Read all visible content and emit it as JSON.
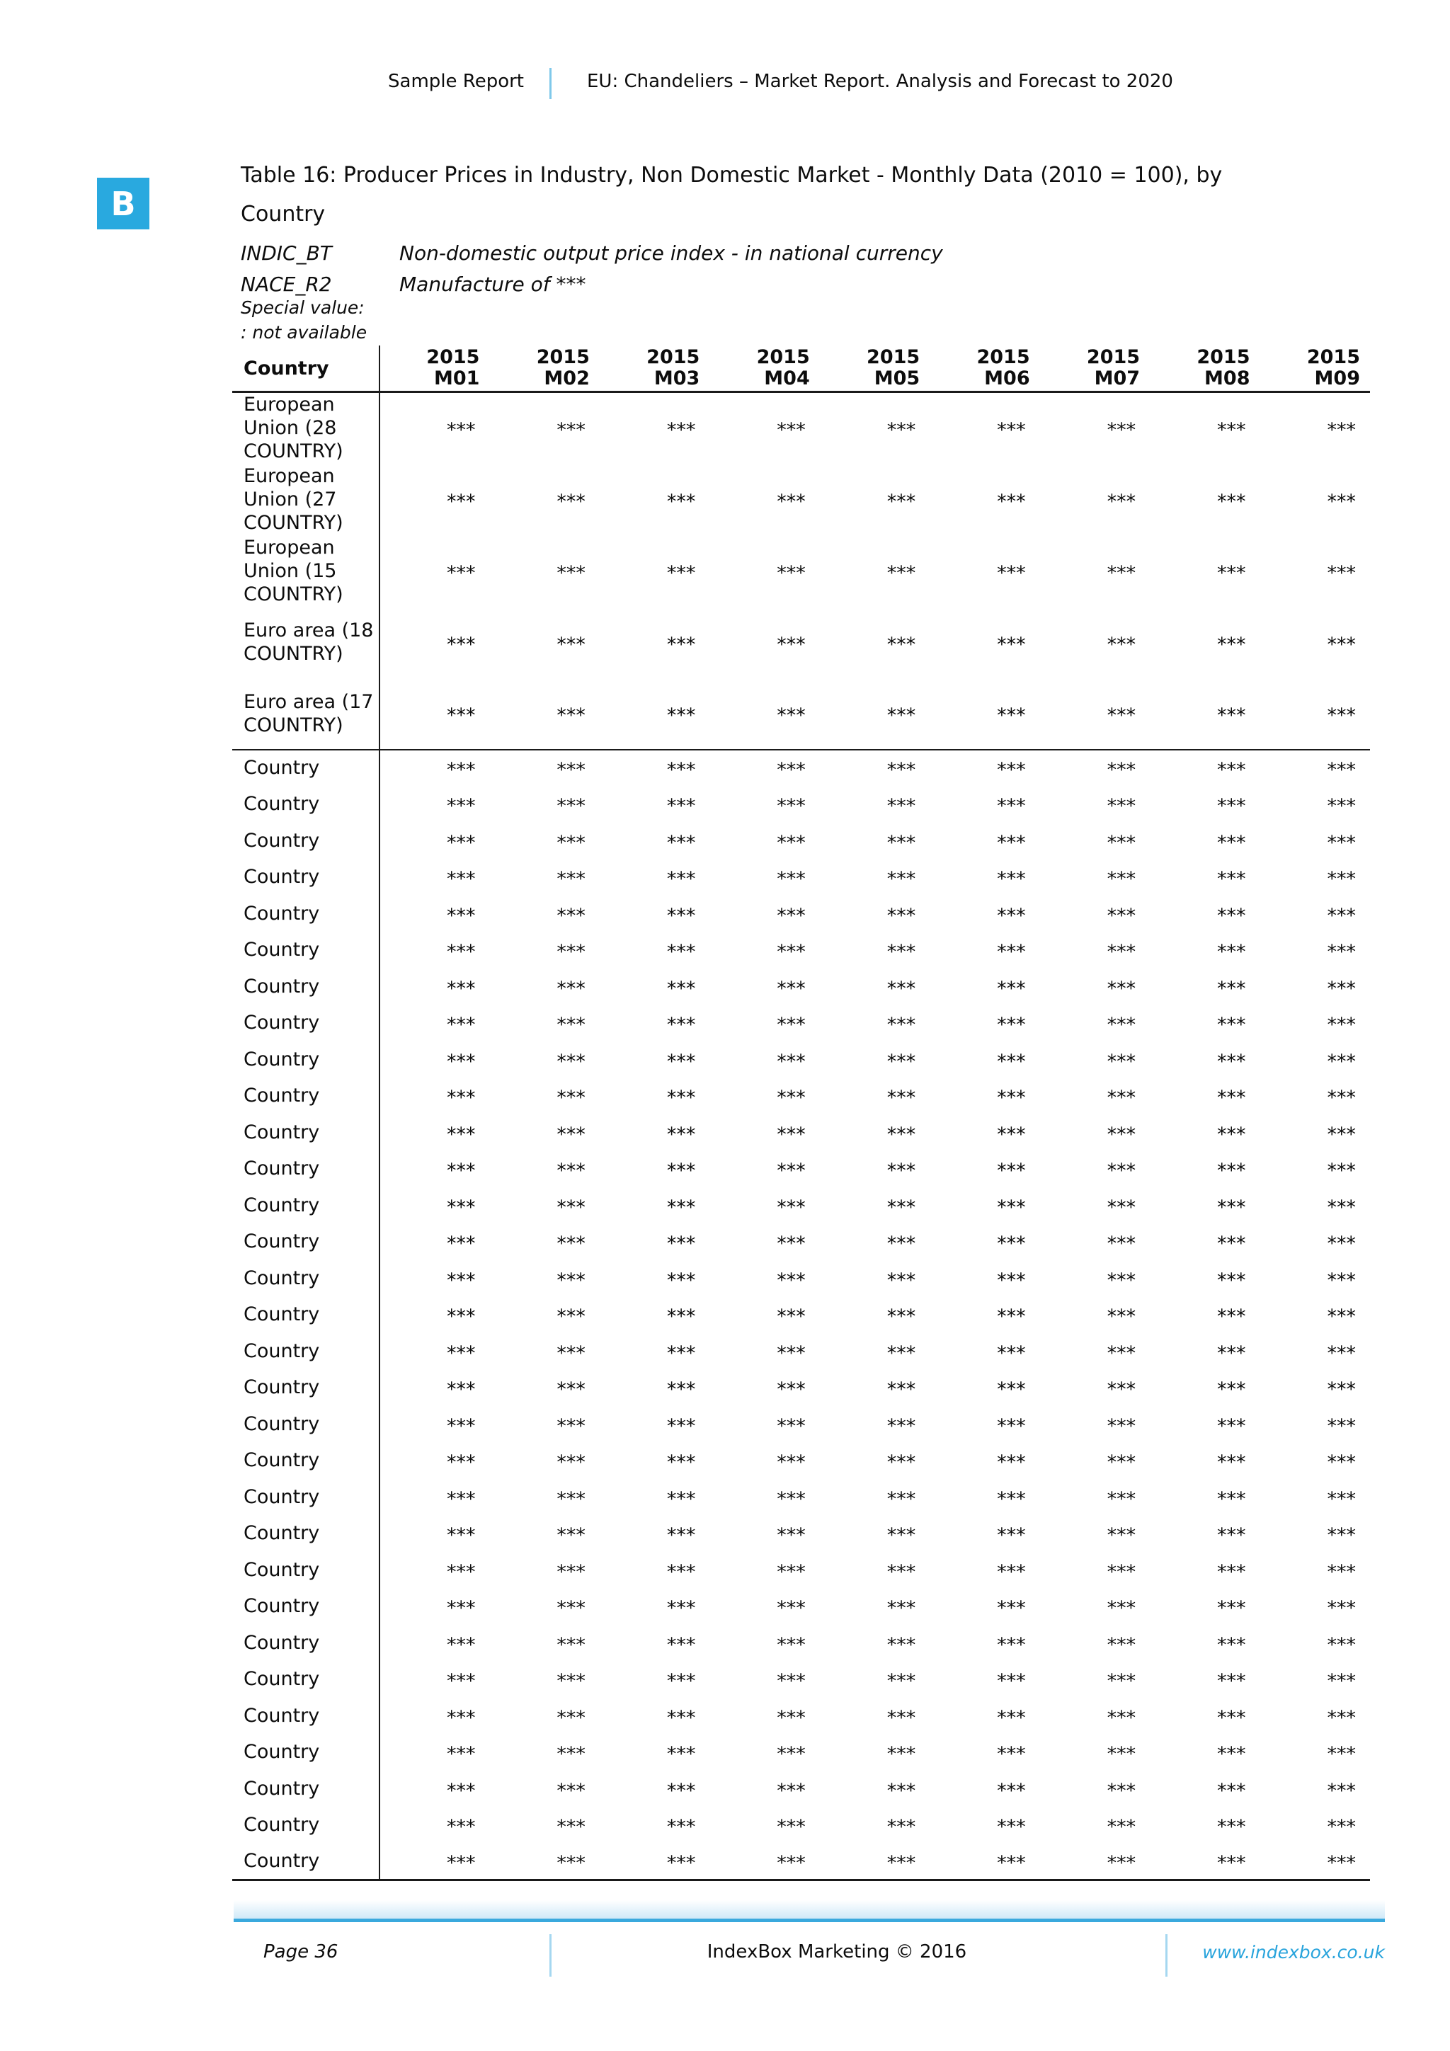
{
  "colors": {
    "accent_blue": "#29a9df",
    "footer_rule_blue": "#3aa9dd",
    "divider_light_blue": "#a5d7f0",
    "link_blue": "#29a4dc"
  },
  "header": {
    "left": "Sample Report",
    "right": "EU: Chandeliers – Market Report. Analysis and Forecast to 2020"
  },
  "logo": {
    "letter": "B"
  },
  "title": "Table 16: Producer Prices in Industry, Non Domestic Market - Monthly Data (2010 = 100), by Country",
  "meta": [
    {
      "label": "INDIC_BT",
      "value": "Non-domestic output price index - in national currency"
    },
    {
      "label": "NACE_R2",
      "value": "Manufacture of ***"
    }
  ],
  "special_value_label": "Special value:",
  "special_value_note": ": not available",
  "table": {
    "country_header": "Country",
    "columns": [
      {
        "year": "2015",
        "month": "M01"
      },
      {
        "year": "2015",
        "month": "M02"
      },
      {
        "year": "2015",
        "month": "M03"
      },
      {
        "year": "2015",
        "month": "M04"
      },
      {
        "year": "2015",
        "month": "M05"
      },
      {
        "year": "2015",
        "month": "M06"
      },
      {
        "year": "2015",
        "month": "M07"
      },
      {
        "year": "2015",
        "month": "M08"
      },
      {
        "year": "2015",
        "month": "M09"
      }
    ],
    "region_rows": [
      {
        "name": "European Union (28 COUNTRY)",
        "values": [
          "***",
          "***",
          "***",
          "***",
          "***",
          "***",
          "***",
          "***",
          "***"
        ]
      },
      {
        "name": "European Union (27 COUNTRY)",
        "values": [
          "***",
          "***",
          "***",
          "***",
          "***",
          "***",
          "***",
          "***",
          "***"
        ]
      },
      {
        "name": "European Union (15 COUNTRY)",
        "values": [
          "***",
          "***",
          "***",
          "***",
          "***",
          "***",
          "***",
          "***",
          "***"
        ]
      },
      {
        "name": "Euro area (18 COUNTRY)",
        "values": [
          "***",
          "***",
          "***",
          "***",
          "***",
          "***",
          "***",
          "***",
          "***"
        ]
      },
      {
        "name": "Euro area (17 COUNTRY)",
        "values": [
          "***",
          "***",
          "***",
          "***",
          "***",
          "***",
          "***",
          "***",
          "***"
        ]
      }
    ],
    "country_rows": [
      {
        "name": "Country",
        "values": [
          "***",
          "***",
          "***",
          "***",
          "***",
          "***",
          "***",
          "***",
          "***"
        ]
      },
      {
        "name": "Country",
        "values": [
          "***",
          "***",
          "***",
          "***",
          "***",
          "***",
          "***",
          "***",
          "***"
        ]
      },
      {
        "name": "Country",
        "values": [
          "***",
          "***",
          "***",
          "***",
          "***",
          "***",
          "***",
          "***",
          "***"
        ]
      },
      {
        "name": "Country",
        "values": [
          "***",
          "***",
          "***",
          "***",
          "***",
          "***",
          "***",
          "***",
          "***"
        ]
      },
      {
        "name": "Country",
        "values": [
          "***",
          "***",
          "***",
          "***",
          "***",
          "***",
          "***",
          "***",
          "***"
        ]
      },
      {
        "name": "Country",
        "values": [
          "***",
          "***",
          "***",
          "***",
          "***",
          "***",
          "***",
          "***",
          "***"
        ]
      },
      {
        "name": "Country",
        "values": [
          "***",
          "***",
          "***",
          "***",
          "***",
          "***",
          "***",
          "***",
          "***"
        ]
      },
      {
        "name": "Country",
        "values": [
          "***",
          "***",
          "***",
          "***",
          "***",
          "***",
          "***",
          "***",
          "***"
        ]
      },
      {
        "name": "Country",
        "values": [
          "***",
          "***",
          "***",
          "***",
          "***",
          "***",
          "***",
          "***",
          "***"
        ]
      },
      {
        "name": "Country",
        "values": [
          "***",
          "***",
          "***",
          "***",
          "***",
          "***",
          "***",
          "***",
          "***"
        ]
      },
      {
        "name": "Country",
        "values": [
          "***",
          "***",
          "***",
          "***",
          "***",
          "***",
          "***",
          "***",
          "***"
        ]
      },
      {
        "name": "Country",
        "values": [
          "***",
          "***",
          "***",
          "***",
          "***",
          "***",
          "***",
          "***",
          "***"
        ]
      },
      {
        "name": "Country",
        "values": [
          "***",
          "***",
          "***",
          "***",
          "***",
          "***",
          "***",
          "***",
          "***"
        ]
      },
      {
        "name": "Country",
        "values": [
          "***",
          "***",
          "***",
          "***",
          "***",
          "***",
          "***",
          "***",
          "***"
        ]
      },
      {
        "name": "Country",
        "values": [
          "***",
          "***",
          "***",
          "***",
          "***",
          "***",
          "***",
          "***",
          "***"
        ]
      },
      {
        "name": "Country",
        "values": [
          "***",
          "***",
          "***",
          "***",
          "***",
          "***",
          "***",
          "***",
          "***"
        ]
      },
      {
        "name": "Country",
        "values": [
          "***",
          "***",
          "***",
          "***",
          "***",
          "***",
          "***",
          "***",
          "***"
        ]
      },
      {
        "name": "Country",
        "values": [
          "***",
          "***",
          "***",
          "***",
          "***",
          "***",
          "***",
          "***",
          "***"
        ]
      },
      {
        "name": "Country",
        "values": [
          "***",
          "***",
          "***",
          "***",
          "***",
          "***",
          "***",
          "***",
          "***"
        ]
      },
      {
        "name": "Country",
        "values": [
          "***",
          "***",
          "***",
          "***",
          "***",
          "***",
          "***",
          "***",
          "***"
        ]
      },
      {
        "name": "Country",
        "values": [
          "***",
          "***",
          "***",
          "***",
          "***",
          "***",
          "***",
          "***",
          "***"
        ]
      },
      {
        "name": "Country",
        "values": [
          "***",
          "***",
          "***",
          "***",
          "***",
          "***",
          "***",
          "***",
          "***"
        ]
      },
      {
        "name": "Country",
        "values": [
          "***",
          "***",
          "***",
          "***",
          "***",
          "***",
          "***",
          "***",
          "***"
        ]
      },
      {
        "name": "Country",
        "values": [
          "***",
          "***",
          "***",
          "***",
          "***",
          "***",
          "***",
          "***",
          "***"
        ]
      },
      {
        "name": "Country",
        "values": [
          "***",
          "***",
          "***",
          "***",
          "***",
          "***",
          "***",
          "***",
          "***"
        ]
      },
      {
        "name": "Country",
        "values": [
          "***",
          "***",
          "***",
          "***",
          "***",
          "***",
          "***",
          "***",
          "***"
        ]
      },
      {
        "name": "Country",
        "values": [
          "***",
          "***",
          "***",
          "***",
          "***",
          "***",
          "***",
          "***",
          "***"
        ]
      },
      {
        "name": "Country",
        "values": [
          "***",
          "***",
          "***",
          "***",
          "***",
          "***",
          "***",
          "***",
          "***"
        ]
      },
      {
        "name": "Country",
        "values": [
          "***",
          "***",
          "***",
          "***",
          "***",
          "***",
          "***",
          "***",
          "***"
        ]
      },
      {
        "name": "Country",
        "values": [
          "***",
          "***",
          "***",
          "***",
          "***",
          "***",
          "***",
          "***",
          "***"
        ]
      },
      {
        "name": "Country",
        "values": [
          "***",
          "***",
          "***",
          "***",
          "***",
          "***",
          "***",
          "***",
          "***"
        ]
      }
    ]
  },
  "footer": {
    "page_label": "Page 36",
    "copyright": "IndexBox Marketing © 2016",
    "link": "www.indexbox.co.uk"
  }
}
